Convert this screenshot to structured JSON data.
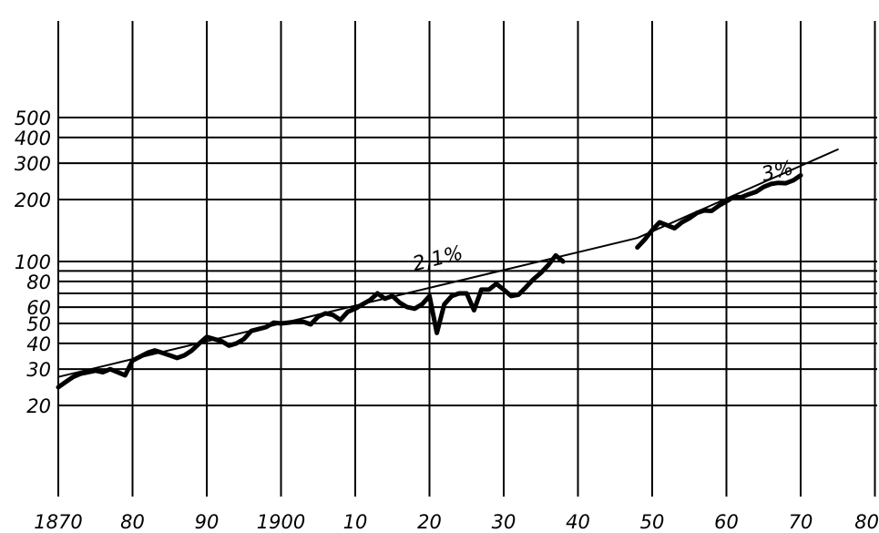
{
  "chart_data": {
    "type": "line",
    "title": "",
    "xlabel": "",
    "ylabel": "",
    "x_scale": "linear",
    "y_scale": "log",
    "xlim": [
      1870,
      1980
    ],
    "ylim": [
      20,
      500
    ],
    "grid": true,
    "y_ticks": [
      20,
      30,
      40,
      50,
      60,
      80,
      100,
      200,
      300,
      400,
      500
    ],
    "y_tick_labels": [
      "20",
      "30",
      "40",
      "50",
      "60",
      "80",
      "100",
      "200",
      "300",
      "400",
      "500"
    ],
    "x_ticks": [
      1870,
      1880,
      1890,
      1900,
      1910,
      1920,
      1930,
      1940,
      1950,
      1960,
      1970,
      1980
    ],
    "x_tick_labels": [
      "1870",
      "80",
      "90",
      "1900",
      "10",
      "20",
      "30",
      "40",
      "50",
      "60",
      "70",
      "80"
    ],
    "series": [
      {
        "role": "observed",
        "x": [
          1870,
          1871,
          1872,
          1873,
          1874,
          1875,
          1876,
          1877,
          1878,
          1879,
          1880,
          1881,
          1882,
          1883,
          1884,
          1885,
          1886,
          1887,
          1888,
          1889,
          1890,
          1891,
          1892,
          1893,
          1894,
          1895,
          1896,
          1897,
          1898,
          1899,
          1900,
          1901,
          1902,
          1903,
          1904,
          1905,
          1906,
          1907,
          1908,
          1909,
          1910,
          1911,
          1912,
          1913,
          1914,
          1915,
          1916,
          1917,
          1918,
          1919,
          1920,
          1921,
          1922,
          1923,
          1924,
          1925,
          1926,
          1927,
          1928,
          1929,
          1930,
          1931,
          1932,
          1933,
          1934,
          1935,
          1936,
          1937,
          1938
        ],
        "values": [
          24.5,
          26,
          27.5,
          28.5,
          29,
          29.5,
          29,
          30,
          29,
          28,
          33,
          34.5,
          36,
          37,
          36,
          35,
          34,
          35,
          37,
          40,
          43,
          42,
          41,
          39,
          40,
          42,
          46,
          47,
          48,
          50.5,
          50,
          50.5,
          51,
          51,
          49.5,
          54,
          56,
          55,
          52,
          57,
          59,
          62,
          65,
          70,
          66,
          68,
          63,
          60,
          59,
          62,
          68,
          45,
          62,
          68,
          70,
          70,
          58,
          73,
          73,
          78,
          73,
          68,
          69,
          75,
          82,
          88,
          96,
          107,
          100
        ]
      },
      {
        "role": "observed",
        "x": [
          1948,
          1949,
          1950,
          1951,
          1952,
          1953,
          1954,
          1955,
          1956,
          1957,
          1958,
          1959,
          1960,
          1961,
          1962,
          1963,
          1964,
          1965,
          1966,
          1967,
          1968,
          1969,
          1970
        ],
        "values": [
          117,
          128,
          142,
          155,
          150,
          145,
          155,
          162,
          172,
          177,
          176,
          187,
          196,
          206,
          205,
          212,
          218,
          230,
          238,
          241,
          240,
          248,
          262
        ]
      },
      {
        "role": "trend",
        "x": [
          1870,
          1948,
          1975
        ],
        "values": [
          27.5,
          130,
          350
        ]
      }
    ],
    "annotations": [
      {
        "text": "2,1%",
        "x": 1918,
        "y": 90
      },
      {
        "text": "3%",
        "x": 1965,
        "y": 245
      }
    ]
  }
}
